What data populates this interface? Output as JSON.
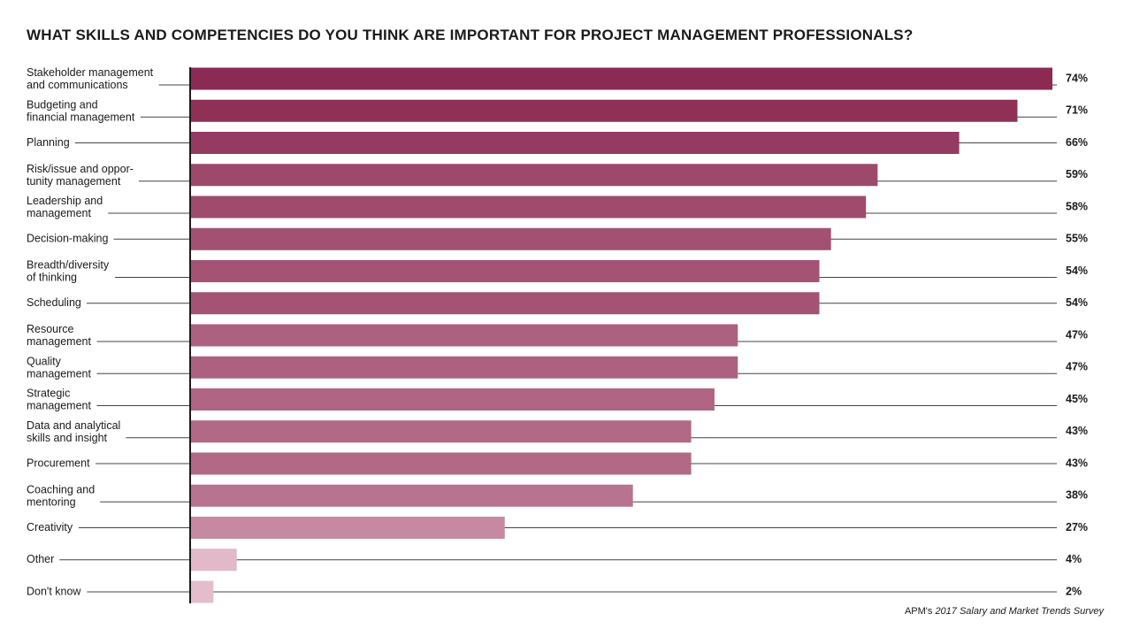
{
  "chart_data": {
    "type": "bar",
    "orientation": "horizontal",
    "title": "WHAT SKILLS AND COMPETENCIES DO YOU THINK ARE IMPORTANT FOR PROJECT MANAGEMENT PROFESSIONALS?",
    "categories": [
      [
        "Stakeholder management",
        "and communications"
      ],
      [
        "Budgeting and",
        "financial management"
      ],
      [
        "Planning"
      ],
      [
        "Risk/issue and oppor-",
        "tunity management"
      ],
      [
        "Leadership and",
        "management"
      ],
      [
        "Decision-making"
      ],
      [
        "Breadth/diversity",
        "of thinking"
      ],
      [
        "Scheduling"
      ],
      [
        "Resource",
        "management"
      ],
      [
        "Quality",
        "management"
      ],
      [
        "Strategic",
        "management"
      ],
      [
        "Data and analytical",
        "skills and insight"
      ],
      [
        "Procurement"
      ],
      [
        "Coaching and",
        "mentoring"
      ],
      [
        "Creativity"
      ],
      [
        "Other"
      ],
      [
        "Don't know"
      ]
    ],
    "values": [
      74,
      71,
      66,
      59,
      58,
      55,
      54,
      54,
      47,
      47,
      45,
      43,
      43,
      38,
      27,
      4,
      2
    ],
    "value_labels": [
      "74%",
      "71%",
      "66%",
      "59%",
      "58%",
      "55%",
      "54%",
      "54%",
      "47%",
      "47%",
      "45%",
      "43%",
      "43%",
      "38%",
      "27%",
      "4%",
      "2%"
    ],
    "unit": "%",
    "xlim": [
      0,
      74
    ],
    "grid": false,
    "colors": {
      "bar_dark": "#8b2a52",
      "bar_light": "#e6c1cf",
      "leader_line": "#444444",
      "axis": "#1a1a1a"
    },
    "source": {
      "prefix": "APM's ",
      "italic": "2017 Salary and Market Trends Survey"
    }
  }
}
